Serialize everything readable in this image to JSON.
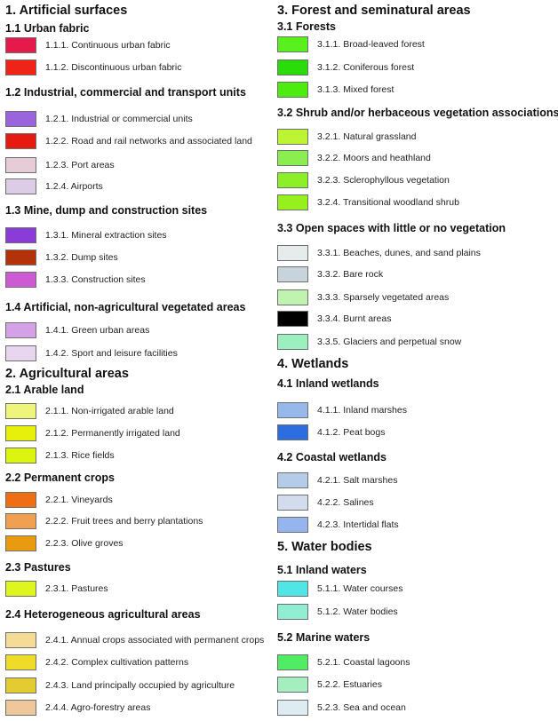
{
  "legend": {
    "left_column": [
      {
        "type": "h1",
        "text": "1. Artificial surfaces"
      },
      {
        "type": "h2",
        "text": "1.1 Urban fabric"
      },
      {
        "type": "item",
        "label": "1.1.1. Continuous urban fabric",
        "color": "#E6194B"
      },
      {
        "type": "item",
        "label": "1.1.2. Discontinuous urban fabric",
        "color": "#F02318"
      },
      {
        "type": "h2",
        "text": "1.2 Industrial, commercial and transport units"
      },
      {
        "type": "item",
        "label": "1.2.1. Industrial or commercial units",
        "color": "#9A64DC"
      },
      {
        "type": "item",
        "label": "1.2.2. Road and rail networks and associated land",
        "color": "#E61A10"
      },
      {
        "type": "item",
        "label": "1.2.3. Port areas",
        "color": "#E6CCD6"
      },
      {
        "type": "item",
        "label": "1.2.4. Airports",
        "color": "#DCCCE6"
      },
      {
        "type": "h2",
        "text": "1.3 Mine, dump and construction sites"
      },
      {
        "type": "item",
        "label": "1.3.1. Mineral extraction sites",
        "color": "#8A3CD8"
      },
      {
        "type": "item",
        "label": "1.3.2. Dump sites",
        "color": "#B4320A"
      },
      {
        "type": "item",
        "label": "1.3.3. Construction sites",
        "color": "#CC5AD2"
      },
      {
        "type": "h2",
        "text": "1.4 Artificial, non-agricultural vegetated areas"
      },
      {
        "type": "item",
        "label": "1.4.1. Green urban areas",
        "color": "#D4A0E6"
      },
      {
        "type": "item",
        "label": "1.4.2. Sport and leisure facilities",
        "color": "#E8D6EE"
      },
      {
        "type": "h1",
        "text": "2. Agricultural areas"
      },
      {
        "type": "h2",
        "text": "2.1 Arable land"
      },
      {
        "type": "item",
        "label": "2.1.1. Non-irrigated arable land",
        "color": "#EEF57A"
      },
      {
        "type": "item",
        "label": "2.1.2. Permanently irrigated land",
        "color": "#E6F00A"
      },
      {
        "type": "item",
        "label": "2.1.3. Rice fields",
        "color": "#DCF50F"
      },
      {
        "type": "h2",
        "text": "2.2 Permanent crops"
      },
      {
        "type": "item",
        "label": "2.2.1. Vineyards",
        "color": "#EE6E14"
      },
      {
        "type": "item",
        "label": "2.2.2. Fruit trees and berry plantations",
        "color": "#F0A050"
      },
      {
        "type": "item",
        "label": "2.2.3. Olive groves",
        "color": "#E89B0E"
      },
      {
        "type": "h2",
        "text": "2.3 Pastures"
      },
      {
        "type": "item",
        "label": "2.3.1. Pastures",
        "color": "#DEF51E"
      },
      {
        "type": "h2",
        "text": "2.4 Heterogeneous agricultural areas"
      },
      {
        "type": "item",
        "label": "2.4.1. Annual crops associated with permanent crops",
        "color": "#F4DC96"
      },
      {
        "type": "item",
        "label": "2.4.2. Complex cultivation patterns",
        "color": "#EEDC28"
      },
      {
        "type": "item",
        "label": "2.4.3. Land principally occupied by agriculture",
        "color": "#E2CC32"
      },
      {
        "type": "item",
        "label": "2.4.4. Agro-forestry areas",
        "color": "#EEC89A"
      }
    ],
    "right_column": [
      {
        "type": "h1",
        "text": "3. Forest and seminatural areas"
      },
      {
        "type": "h2",
        "text": "3.1 Forests"
      },
      {
        "type": "item",
        "label": "3.1.1. Broad-leaved forest",
        "color": "#5AF01E"
      },
      {
        "type": "item",
        "label": "3.1.2. Coniferous forest",
        "color": "#2ADC0A"
      },
      {
        "type": "item",
        "label": "3.1.3. Mixed forest",
        "color": "#4CEC10"
      },
      {
        "type": "h2",
        "text": "3.2 Shrub and/or herbaceous vegetation associations"
      },
      {
        "type": "item",
        "label": "3.2.1. Natural grassland",
        "color": "#BEF532"
      },
      {
        "type": "item",
        "label": "3.2.2. Moors and heathland",
        "color": "#8AEE50"
      },
      {
        "type": "item",
        "label": "3.2.3. Sclerophyllous vegetation",
        "color": "#8CF028"
      },
      {
        "type": "item",
        "label": "3.2.4. Transitional  woodland shrub",
        "color": "#96F01E"
      },
      {
        "type": "h2",
        "text": "3.3 Open spaces with little or no vegetation"
      },
      {
        "type": "item",
        "label": "3.3.1. Beaches, dunes, and sand plains",
        "color": "#E6ECEC"
      },
      {
        "type": "item",
        "label": "3.3.2. Bare rock",
        "color": "#C8D4DC"
      },
      {
        "type": "item",
        "label": "3.3.3. Sparsely vegetated areas",
        "color": "#C0F2B0"
      },
      {
        "type": "item",
        "label": "3.3.4. Burnt areas",
        "color": "#000000"
      },
      {
        "type": "item",
        "label": "3.3.5. Glaciers and perpetual snow",
        "color": "#9CF0C0"
      },
      {
        "type": "h1",
        "text": "4. Wetlands"
      },
      {
        "type": "h2",
        "text": "4.1 Inland wetlands"
      },
      {
        "type": "item",
        "label": "4.1.1. Inland marshes",
        "color": "#96B8EA"
      },
      {
        "type": "item",
        "label": "4.1.2. Peat bogs",
        "color": "#2C6EE0"
      },
      {
        "type": "h2",
        "text": "4.2 Coastal wetlands"
      },
      {
        "type": "item",
        "label": "4.2.1. Salt marshes",
        "color": "#B4CCE8"
      },
      {
        "type": "item",
        "label": "4.2.2. Salines",
        "color": "#D2DCEC"
      },
      {
        "type": "item",
        "label": "4.2.3. Intertidal flats",
        "color": "#96B4EE"
      },
      {
        "type": "h1",
        "text": "5. Water bodies"
      },
      {
        "type": "h2",
        "text": "5.1 Inland waters"
      },
      {
        "type": "item",
        "label": "5.1.1. Water courses",
        "color": "#50E6E6"
      },
      {
        "type": "item",
        "label": "5.1.2. Water bodies",
        "color": "#90EED2"
      },
      {
        "type": "h2",
        "text": "5.2 Marine waters"
      },
      {
        "type": "item",
        "label": "5.2.1. Coastal lagoons",
        "color": "#50EC64"
      },
      {
        "type": "item",
        "label": "5.2.2. Estuaries",
        "color": "#A4EEC0"
      },
      {
        "type": "item",
        "label": "5.2.3. Sea and ocean",
        "color": "#DCECF0"
      }
    ]
  }
}
